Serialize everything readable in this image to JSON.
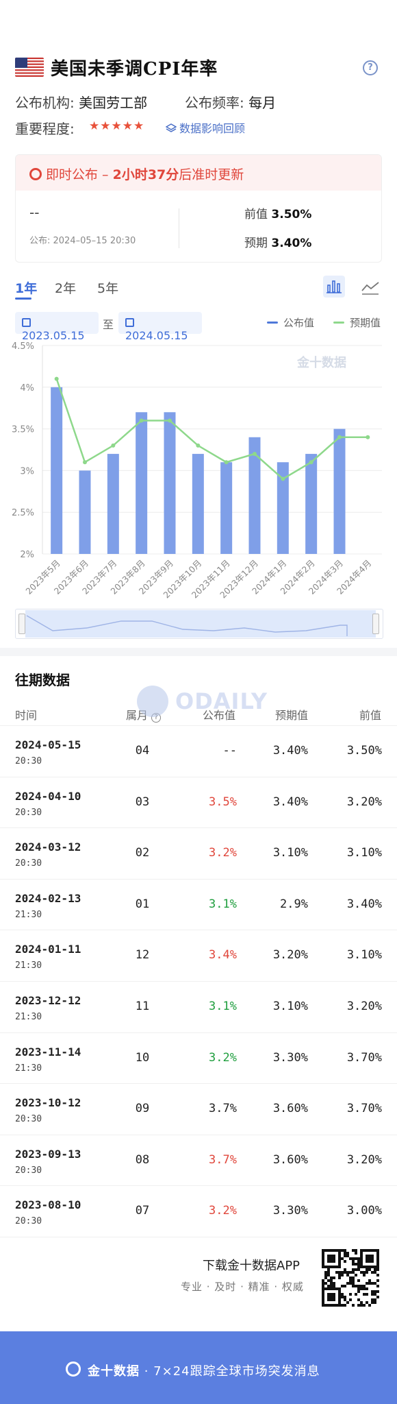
{
  "header": {
    "title": "美国未季调CPI年率",
    "help_label": "?",
    "agency_label": "公布机构:",
    "agency_value": "美国劳工部",
    "freq_label": "公布频率:",
    "freq_value": "每月",
    "importance_label": "重要程度:",
    "importance_stars": 5,
    "stars_text": "★★★★★",
    "impact_link": "数据影响回顾"
  },
  "release": {
    "status_prefix": "即时公布 – ",
    "status_highlight": "2小时37分",
    "status_suffix": "后准时更新",
    "actual": "--",
    "publish_time": "公布: 2024–05–15 20:30",
    "prev_label": "前值",
    "prev_value": "3.50%",
    "forecast_label": "预期",
    "forecast_value": "3.40%"
  },
  "tabs": [
    "1年",
    "2年",
    "5年"
  ],
  "date_range": {
    "start": "2023.05.15",
    "sep": "至",
    "end": "2024.05.15"
  },
  "legend": {
    "actual": "公布值",
    "forecast": "预期值"
  },
  "colors": {
    "bar": "#7f9fe8",
    "line": "#8ed88b",
    "accent": "#3f6dd8",
    "red": "#e0463b",
    "green": "#1f9e3e"
  },
  "chart_data": {
    "type": "bar",
    "categories": [
      "2023年5月",
      "2023年6月",
      "2023年7月",
      "2023年8月",
      "2023年9月",
      "2023年10月",
      "2023年11月",
      "2023年12月",
      "2024年1月",
      "2024年2月",
      "2024年3月",
      "2024年4月"
    ],
    "series": [
      {
        "name": "公布值",
        "type": "bar",
        "values": [
          4.0,
          3.0,
          3.2,
          3.7,
          3.7,
          3.2,
          3.1,
          3.4,
          3.1,
          3.2,
          3.5,
          null
        ]
      },
      {
        "name": "预期值",
        "type": "line",
        "values": [
          4.1,
          3.1,
          3.3,
          3.6,
          3.6,
          3.3,
          3.1,
          3.2,
          2.9,
          3.1,
          3.4,
          3.4
        ]
      }
    ],
    "y_ticks": [
      "2%",
      "2.5%",
      "3%",
      "3.5%",
      "4%",
      "4.5%"
    ],
    "ylim": [
      2,
      4.5
    ],
    "watermark": "金十数据",
    "grid": true,
    "legend_position": "top-right"
  },
  "history": {
    "title": "往期数据",
    "headers": {
      "time": "时间",
      "month": "属月",
      "actual": "公布值",
      "forecast": "预期值",
      "prev": "前值"
    },
    "rows": [
      {
        "date": "2024-05-15",
        "time": "20:30",
        "month": "04",
        "actual": "--",
        "forecast": "3.40%",
        "prev": "3.50%",
        "color": ""
      },
      {
        "date": "2024-04-10",
        "time": "20:30",
        "month": "03",
        "actual": "3.5%",
        "forecast": "3.40%",
        "prev": "3.20%",
        "color": "red"
      },
      {
        "date": "2024-03-12",
        "time": "20:30",
        "month": "02",
        "actual": "3.2%",
        "forecast": "3.10%",
        "prev": "3.10%",
        "color": "red"
      },
      {
        "date": "2024-02-13",
        "time": "21:30",
        "month": "01",
        "actual": "3.1%",
        "forecast": "2.9%",
        "prev": "3.40%",
        "color": "green"
      },
      {
        "date": "2024-01-11",
        "time": "21:30",
        "month": "12",
        "actual": "3.4%",
        "forecast": "3.20%",
        "prev": "3.10%",
        "color": "red"
      },
      {
        "date": "2023-12-12",
        "time": "21:30",
        "month": "11",
        "actual": "3.1%",
        "forecast": "3.10%",
        "prev": "3.20%",
        "color": "green"
      },
      {
        "date": "2023-11-14",
        "time": "21:30",
        "month": "10",
        "actual": "3.2%",
        "forecast": "3.30%",
        "prev": "3.70%",
        "color": "green"
      },
      {
        "date": "2023-10-12",
        "time": "20:30",
        "month": "09",
        "actual": "3.7%",
        "forecast": "3.60%",
        "prev": "3.70%",
        "color": ""
      },
      {
        "date": "2023-09-13",
        "time": "20:30",
        "month": "08",
        "actual": "3.7%",
        "forecast": "3.60%",
        "prev": "3.20%",
        "color": "red"
      },
      {
        "date": "2023-08-10",
        "time": "20:30",
        "month": "07",
        "actual": "3.2%",
        "forecast": "3.30%",
        "prev": "3.00%",
        "color": "red"
      }
    ]
  },
  "watermark_text": "ODAILY",
  "footer": {
    "download_text": "下载金十数据APP",
    "download_sub": "专业 · 及时 · 精准 · 权威",
    "brand": "金十数据",
    "tagline": " · 7×24跟踪全球市场突发消息"
  }
}
